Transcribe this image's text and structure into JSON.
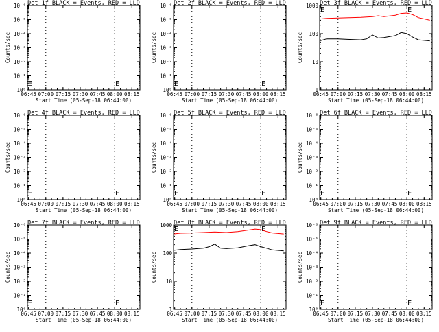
{
  "chart_data": [
    {
      "type": "line",
      "title": "Det 1f BLACK = Events, RED = LLD",
      "xlabel": "Start Time (05-Sep-18 06:44:00)",
      "ylabel": "Counts/sec",
      "x_ticks": [
        "06:45",
        "07:00",
        "07:15",
        "07:30",
        "07:45",
        "08:00",
        "08:15"
      ],
      "y_ticks": [
        "10⁰",
        "10⁻¹",
        "10⁻²",
        "10⁻³",
        "10⁻⁴",
        "10⁻⁵",
        "10⁻⁶"
      ],
      "ylim": [
        1e-06,
        1
      ],
      "yscale": "log",
      "e_markers": [
        "06:44",
        "08:00"
      ],
      "dotted_lines": [
        "07:00",
        "08:00"
      ],
      "series": []
    },
    {
      "type": "line",
      "title": "Det 2f BLACK = Events, RED = LLD",
      "xlabel": "Start Time (05-Sep-18 06:44:00)",
      "ylabel": "Counts/sec",
      "x_ticks": [
        "06:45",
        "07:00",
        "07:15",
        "07:30",
        "07:45",
        "08:00",
        "08:15"
      ],
      "y_ticks": [
        "10⁰",
        "10⁻¹",
        "10⁻²",
        "10⁻³",
        "10⁻⁴",
        "10⁻⁵",
        "10⁻⁶"
      ],
      "ylim": [
        1e-06,
        1
      ],
      "yscale": "log",
      "e_markers": [
        "06:44",
        "08:00"
      ],
      "dotted_lines": [
        "07:00",
        "08:00"
      ],
      "series": []
    },
    {
      "type": "line",
      "title": "Det 3f BLACK = Events, RED = LLD",
      "xlabel": "Start Time (05-Sep-18 06:44:00)",
      "ylabel": "Counts/sec",
      "x_ticks": [
        "06:45",
        "07:00",
        "07:15",
        "07:30",
        "07:45",
        "08:00",
        "08:15"
      ],
      "y_ticks": [
        "1",
        "10",
        "100",
        "1000"
      ],
      "ylim": [
        1,
        1000
      ],
      "yscale": "log",
      "e_markers": [
        "06:44",
        "08:00"
      ],
      "dotted_lines": [
        "07:00",
        "08:00"
      ],
      "series": [
        {
          "color": "#ff0000",
          "x": [
            "06:44",
            "06:50",
            "07:00",
            "07:10",
            "07:20",
            "07:30",
            "07:35",
            "07:40",
            "07:50",
            "07:55",
            "08:00",
            "08:05",
            "08:10",
            "08:20"
          ],
          "values": [
            330,
            350,
            360,
            370,
            380,
            400,
            430,
            400,
            450,
            520,
            540,
            470,
            370,
            300
          ]
        },
        {
          "color": "#000000",
          "x": [
            "06:44",
            "06:50",
            "07:00",
            "07:10",
            "07:20",
            "07:25",
            "07:30",
            "07:35",
            "07:40",
            "07:50",
            "07:55",
            "08:00",
            "08:05",
            "08:10",
            "08:20"
          ],
          "values": [
            55,
            65,
            65,
            62,
            60,
            65,
            90,
            70,
            72,
            85,
            110,
            100,
            75,
            60,
            55
          ]
        }
      ]
    },
    {
      "type": "line",
      "title": "Det 4f BLACK = Events, RED = LLD",
      "xlabel": "Start Time (05-Sep-18 06:44:00)",
      "ylabel": "Counts/sec",
      "x_ticks": [
        "06:45",
        "07:00",
        "07:15",
        "07:30",
        "07:45",
        "08:00",
        "08:15"
      ],
      "y_ticks": [
        "10⁰",
        "10⁻¹",
        "10⁻²",
        "10⁻³",
        "10⁻⁴",
        "10⁻⁵",
        "10⁻⁶"
      ],
      "ylim": [
        1e-06,
        1
      ],
      "yscale": "log",
      "e_markers": [
        "06:44",
        "08:00"
      ],
      "dotted_lines": [
        "07:00",
        "08:00"
      ],
      "series": []
    },
    {
      "type": "line",
      "title": "Det 5f BLACK = Events, RED = LLD",
      "xlabel": "Start Time (05-Sep-18 06:44:00)",
      "ylabel": "Counts/sec",
      "x_ticks": [
        "06:45",
        "07:00",
        "07:15",
        "07:30",
        "07:45",
        "08:00",
        "08:15"
      ],
      "y_ticks": [
        "10⁰",
        "10⁻¹",
        "10⁻²",
        "10⁻³",
        "10⁻⁴",
        "10⁻⁵",
        "10⁻⁶"
      ],
      "ylim": [
        1e-06,
        1
      ],
      "yscale": "log",
      "e_markers": [
        "06:44",
        "08:00"
      ],
      "dotted_lines": [
        "07:00",
        "08:00"
      ],
      "series": []
    },
    {
      "type": "line",
      "title": "Det 6f BLACK = Events, RED = LLD",
      "xlabel": "Start Time (05-Sep-18 06:44:00)",
      "ylabel": "Counts/sec",
      "x_ticks": [
        "06:45",
        "07:00",
        "07:15",
        "07:30",
        "07:45",
        "08:00",
        "08:15"
      ],
      "y_ticks": [
        "10⁰",
        "10⁻¹",
        "10⁻²",
        "10⁻³",
        "10⁻⁴",
        "10⁻⁵",
        "10⁻⁶"
      ],
      "ylim": [
        1e-06,
        1
      ],
      "yscale": "log",
      "e_markers": [
        "06:44",
        "08:00"
      ],
      "dotted_lines": [
        "07:00",
        "08:00"
      ],
      "series": []
    },
    {
      "type": "line",
      "title": "Det 7f BLACK = Events, RED = LLD",
      "xlabel": "Start Time (05-Sep-18 06:44:00)",
      "ylabel": "Counts/sec",
      "x_ticks": [
        "06:45",
        "07:00",
        "07:15",
        "07:30",
        "07:45",
        "08:00",
        "08:15"
      ],
      "y_ticks": [
        "10⁰",
        "10⁻¹",
        "10⁻²",
        "10⁻³",
        "10⁻⁴",
        "10⁻⁵",
        "10⁻⁶"
      ],
      "ylim": [
        1e-06,
        1
      ],
      "yscale": "log",
      "e_markers": [
        "06:44",
        "08:00"
      ],
      "dotted_lines": [
        "07:00",
        "08:00"
      ],
      "series": []
    },
    {
      "type": "line",
      "title": "Det 8f BLACK = Events, RED = LLD",
      "xlabel": "Start Time (05-Sep-18 06:44:00)",
      "ylabel": "Counts/sec",
      "x_ticks": [
        "06:45",
        "07:00",
        "07:15",
        "07:30",
        "07:45",
        "08:00",
        "08:15"
      ],
      "y_ticks": [
        "1",
        "10",
        "100",
        "1000"
      ],
      "ylim": [
        1,
        1000
      ],
      "yscale": "log",
      "e_markers": [
        "06:44",
        "08:00"
      ],
      "dotted_lines": [
        "07:00",
        "08:00"
      ],
      "series": [
        {
          "color": "#ff0000",
          "x": [
            "06:44",
            "06:50",
            "07:00",
            "07:10",
            "07:20",
            "07:30",
            "07:40",
            "07:50",
            "07:55",
            "08:00",
            "08:05",
            "08:10",
            "08:20"
          ],
          "values": [
            480,
            510,
            520,
            540,
            560,
            540,
            580,
            660,
            710,
            680,
            580,
            520,
            480
          ]
        },
        {
          "color": "#000000",
          "x": [
            "06:44",
            "06:50",
            "07:00",
            "07:10",
            "07:15",
            "07:20",
            "07:25",
            "07:30",
            "07:40",
            "07:50",
            "07:55",
            "08:00",
            "08:05",
            "08:10",
            "08:20"
          ],
          "values": [
            125,
            135,
            140,
            150,
            170,
            210,
            150,
            145,
            155,
            185,
            200,
            170,
            150,
            130,
            120
          ]
        }
      ]
    },
    {
      "type": "line",
      "title": "Det 9f BLACK = Events, RED = LLD",
      "xlabel": "Start Time (05-Sep-18 06:44:00)",
      "ylabel": "Counts/sec",
      "x_ticks": [
        "06:45",
        "07:00",
        "07:15",
        "07:30",
        "07:45",
        "08:00",
        "08:15"
      ],
      "y_ticks": [
        "10⁰",
        "10⁻¹",
        "10⁻²",
        "10⁻³",
        "10⁻⁴",
        "10⁻⁵",
        "10⁻⁶"
      ],
      "ylim": [
        1e-06,
        1
      ],
      "yscale": "log",
      "e_markers": [
        "06:44",
        "08:00"
      ],
      "dotted_lines": [
        "07:00",
        "08:00"
      ],
      "series": []
    }
  ]
}
